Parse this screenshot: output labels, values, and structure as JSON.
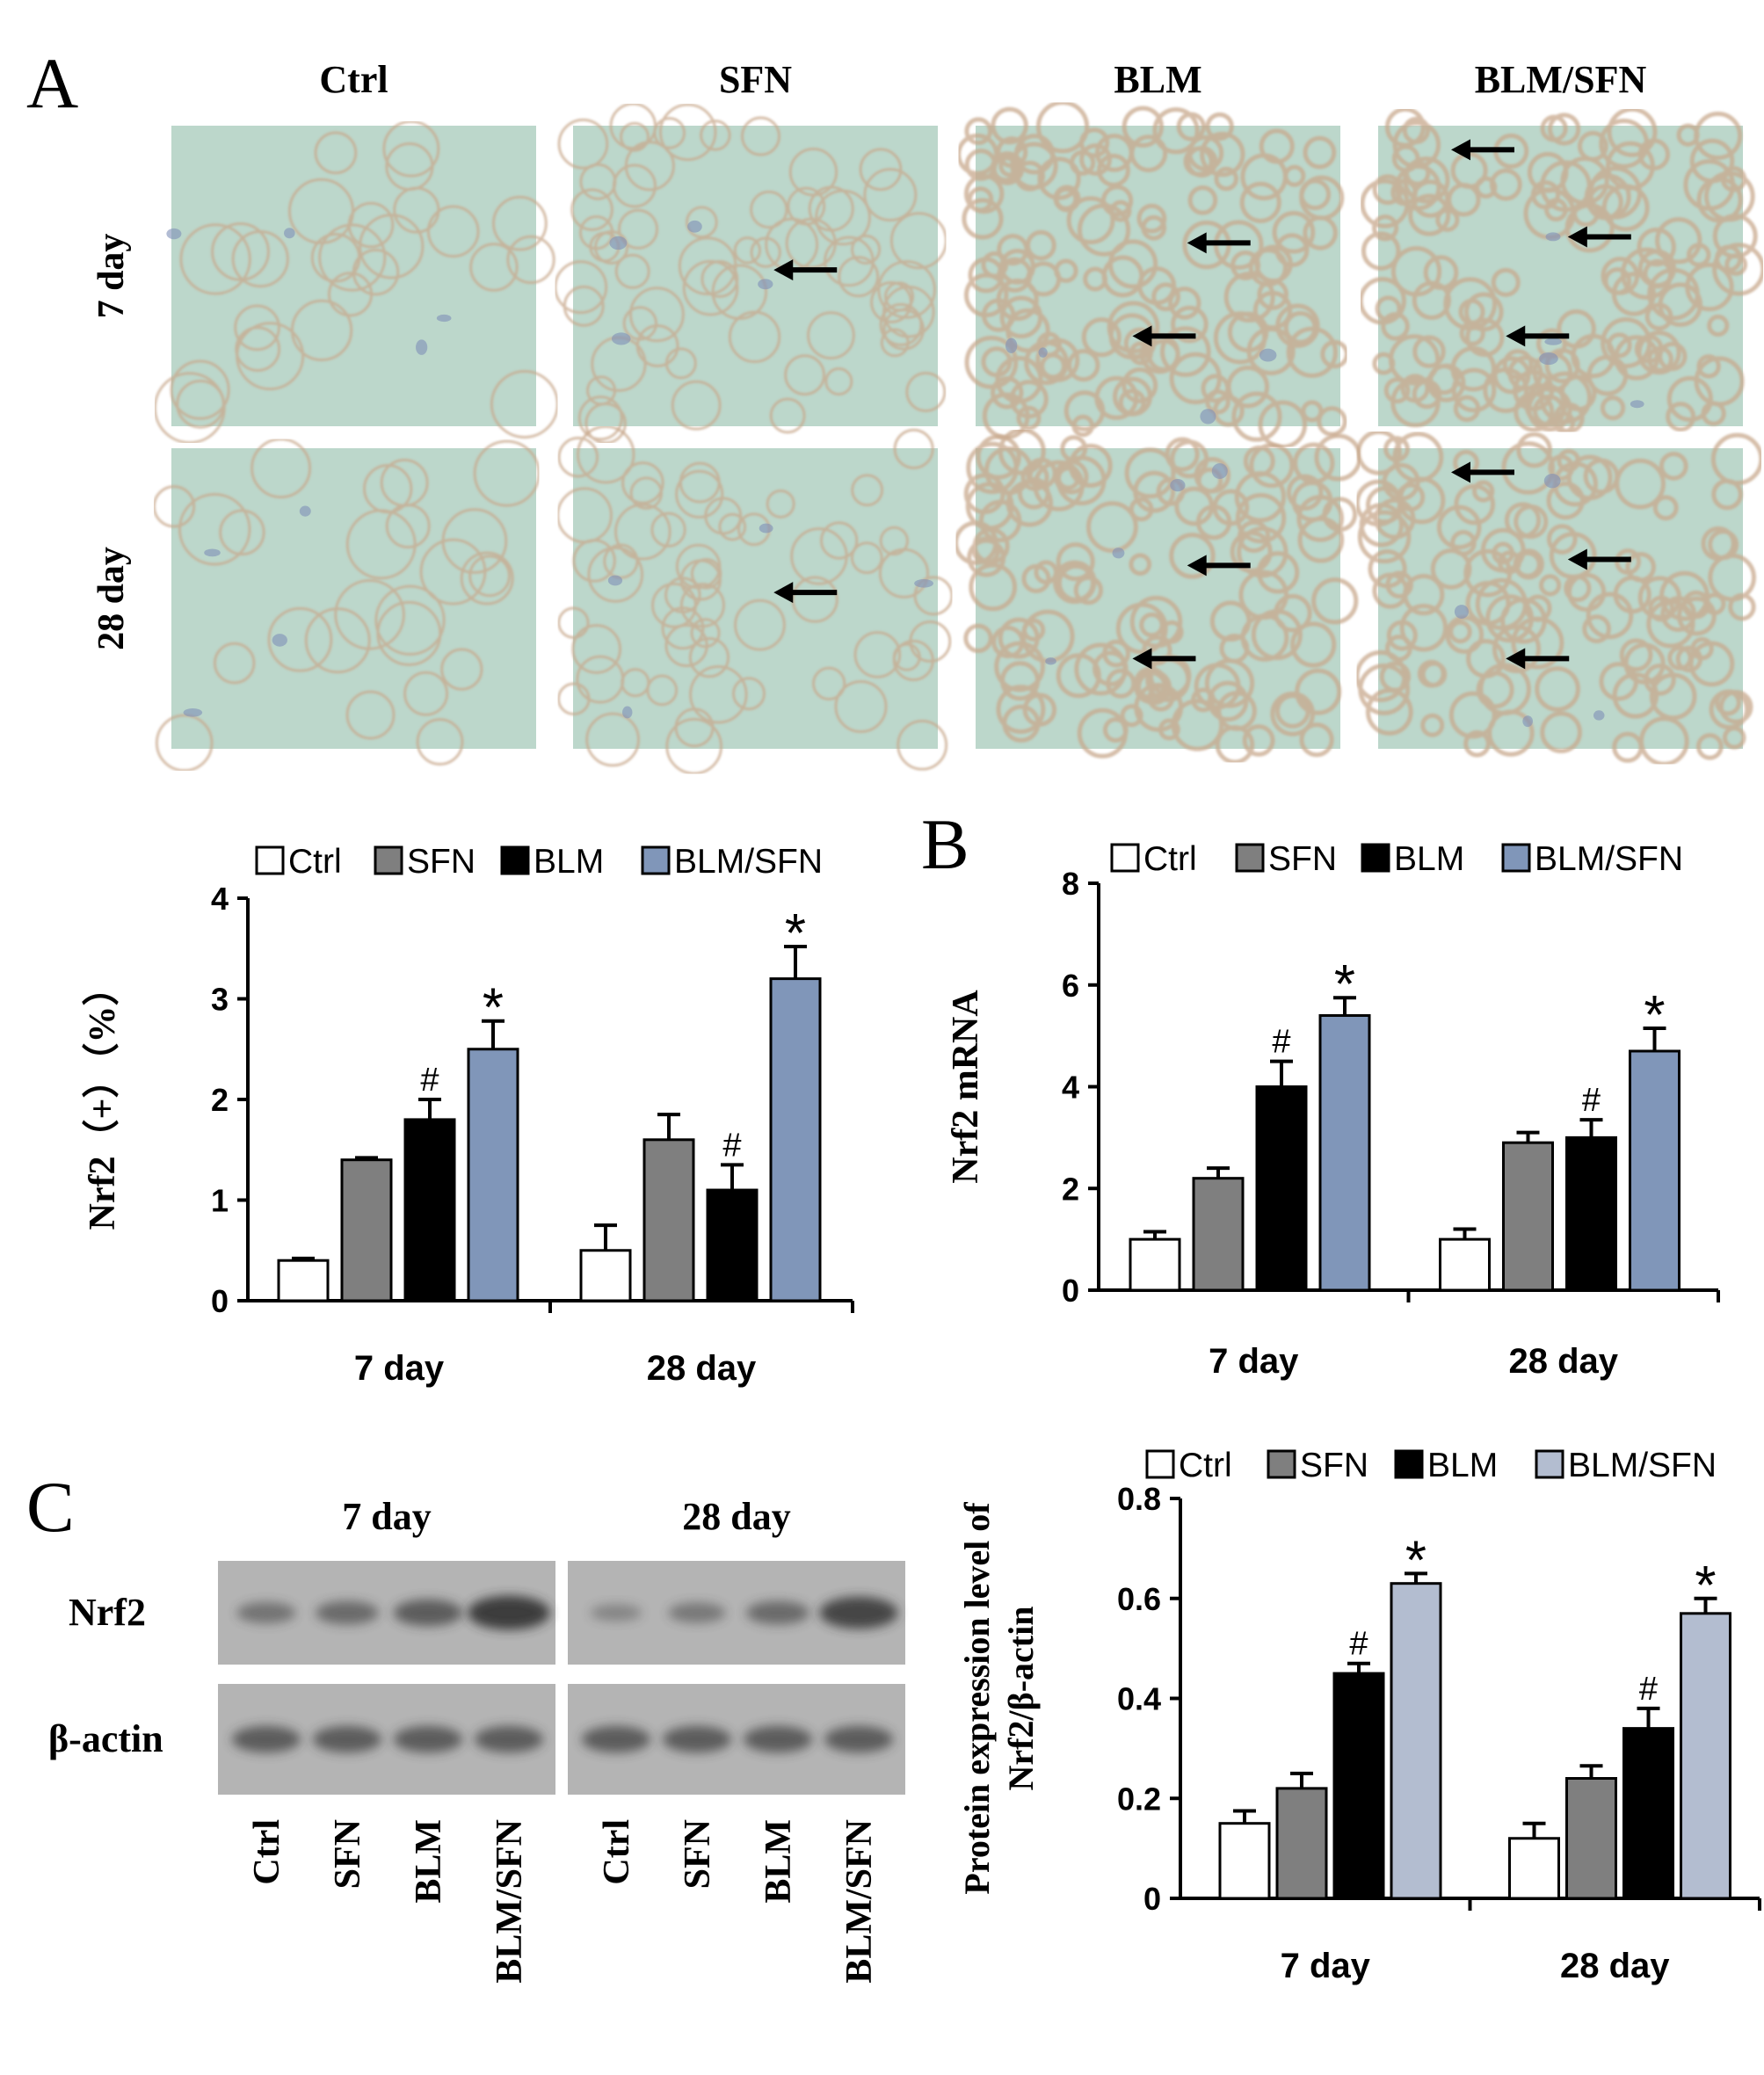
{
  "colors": {
    "Ctrl": "#ffffff",
    "SFN": "#7f7f7f",
    "BLM": "#000000",
    "BLM/SFN_A": "#8096b9",
    "BLM/SFN_B": "#8096b9",
    "BLM/SFN_C": "#b3bdd0",
    "micrograph_bg": "#bcd7cb",
    "micrograph_tissue": "#c8a88c",
    "blot_bg": "#b4b4b4"
  },
  "panel_A": {
    "letter": "A",
    "column_headers": [
      "Ctrl",
      "SFN",
      "BLM",
      "BLM/SFN"
    ],
    "row_labels": [
      "7 day",
      "28 day"
    ],
    "micrographs": [
      {
        "row": "7 day",
        "group": "Ctrl",
        "arrows": 0
      },
      {
        "row": "7 day",
        "group": "SFN",
        "arrows": 1
      },
      {
        "row": "7 day",
        "group": "BLM",
        "arrows": 2
      },
      {
        "row": "7 day",
        "group": "BLM/SFN",
        "arrows": 3
      },
      {
        "row": "28 day",
        "group": "Ctrl",
        "arrows": 0
      },
      {
        "row": "28 day",
        "group": "SFN",
        "arrows": 1
      },
      {
        "row": "28 day",
        "group": "BLM",
        "arrows": 2
      },
      {
        "row": "28 day",
        "group": "BLM/SFN",
        "arrows": 3
      }
    ],
    "arrow_icon": "left-arrow-icon"
  },
  "panel_B": {
    "letter": "B"
  },
  "panel_C": {
    "letter": "C",
    "blot": {
      "time_labels": [
        "7 day",
        "28 day"
      ],
      "rows": [
        "Nrf2",
        "β-actin"
      ],
      "lane_labels": [
        "Ctrl",
        "SFN",
        "BLM",
        "BLM/SFN",
        "Ctrl",
        "SFN",
        "BLM",
        "BLM/SFN"
      ],
      "nrf2_intensity_7day": [
        0.35,
        0.45,
        0.6,
        0.95
      ],
      "nrf2_intensity_28day": [
        0.15,
        0.3,
        0.45,
        0.85
      ],
      "actin_intensity": [
        0.6,
        0.6,
        0.6,
        0.6,
        0.6,
        0.6,
        0.6,
        0.6
      ]
    }
  },
  "chart_data": [
    {
      "id": "chartA",
      "type": "bar",
      "categories": [
        "7 day",
        "28 day"
      ],
      "series": [
        {
          "name": "Ctrl",
          "values": [
            0.4,
            0.5
          ],
          "errors": [
            0.02,
            0.25
          ]
        },
        {
          "name": "SFN",
          "values": [
            1.4,
            1.6
          ],
          "errors": [
            0.02,
            0.25
          ]
        },
        {
          "name": "BLM",
          "values": [
            1.8,
            1.1
          ],
          "errors": [
            0.2,
            0.25
          ]
        },
        {
          "name": "BLM/SFN",
          "values": [
            2.5,
            3.2
          ],
          "errors": [
            0.28,
            0.32
          ]
        }
      ],
      "annotations": [
        {
          "series": "BLM",
          "category": "7 day",
          "text": "#"
        },
        {
          "series": "BLM/SFN",
          "category": "7 day",
          "text": "*"
        },
        {
          "series": "BLM",
          "category": "28 day",
          "text": "#"
        },
        {
          "series": "BLM/SFN",
          "category": "28 day",
          "text": "*"
        }
      ],
      "ylabel": "Nrf2（+）（%）",
      "ylim": [
        0,
        4
      ],
      "yticks": [
        0,
        1,
        2,
        3,
        4
      ],
      "legend_placement": "top",
      "grid": false
    },
    {
      "id": "chartB",
      "type": "bar",
      "categories": [
        "7 day",
        "28 day"
      ],
      "series": [
        {
          "name": "Ctrl",
          "values": [
            1.0,
            1.0
          ],
          "errors": [
            0.15,
            0.2
          ]
        },
        {
          "name": "SFN",
          "values": [
            2.2,
            2.9
          ],
          "errors": [
            0.2,
            0.2
          ]
        },
        {
          "name": "BLM",
          "values": [
            4.0,
            3.0
          ],
          "errors": [
            0.5,
            0.35
          ]
        },
        {
          "name": "BLM/SFN",
          "values": [
            5.4,
            4.7
          ],
          "errors": [
            0.35,
            0.45
          ]
        }
      ],
      "annotations": [
        {
          "series": "BLM",
          "category": "7 day",
          "text": "#"
        },
        {
          "series": "BLM/SFN",
          "category": "7 day",
          "text": "*"
        },
        {
          "series": "BLM",
          "category": "28 day",
          "text": "#"
        },
        {
          "series": "BLM/SFN",
          "category": "28 day",
          "text": "*"
        }
      ],
      "ylabel": "Nrf2 mRNA",
      "ylim": [
        0,
        8
      ],
      "yticks": [
        0,
        2,
        4,
        6,
        8
      ],
      "legend_placement": "top",
      "grid": false
    },
    {
      "id": "chartC",
      "type": "bar",
      "categories": [
        "7 day",
        "28 day"
      ],
      "series": [
        {
          "name": "Ctrl",
          "values": [
            0.15,
            0.12
          ],
          "errors": [
            0.025,
            0.03
          ]
        },
        {
          "name": "SFN",
          "values": [
            0.22,
            0.24
          ],
          "errors": [
            0.03,
            0.025
          ]
        },
        {
          "name": "BLM",
          "values": [
            0.45,
            0.34
          ],
          "errors": [
            0.02,
            0.04
          ]
        },
        {
          "name": "BLM/SFN",
          "values": [
            0.63,
            0.57
          ],
          "errors": [
            0.02,
            0.03
          ]
        }
      ],
      "annotations": [
        {
          "series": "BLM",
          "category": "7 day",
          "text": "#"
        },
        {
          "series": "BLM/SFN",
          "category": "7 day",
          "text": "*"
        },
        {
          "series": "BLM",
          "category": "28 day",
          "text": "#"
        },
        {
          "series": "BLM/SFN",
          "category": "28 day",
          "text": "*"
        }
      ],
      "ylabel_lines": [
        "Protein expression level of",
        "Nrf2/β-actin"
      ],
      "ylim": [
        0,
        0.8
      ],
      "yticks": [
        0,
        0.2,
        0.4,
        0.6,
        0.8
      ],
      "legend_placement": "top",
      "grid": false
    }
  ]
}
